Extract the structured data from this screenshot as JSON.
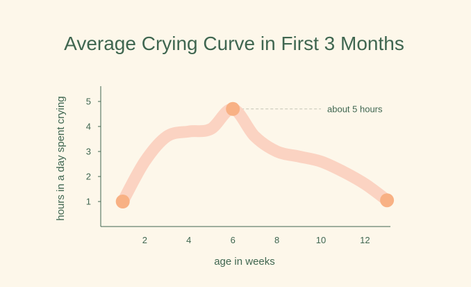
{
  "colors": {
    "background": "#fdf7ea",
    "text": "#3f6650",
    "axis": "#3f6650",
    "curve": "#fbd3c2",
    "marker": "#f8b184",
    "leader": "#c4c4b4"
  },
  "chart_data": {
    "type": "line",
    "title": "Average Crying Curve in First 3 Months",
    "xlabel": "age in weeks",
    "ylabel": "hours in a day spent crying",
    "xlim": [
      0,
      13.5
    ],
    "ylim": [
      0,
      5.5
    ],
    "xticks": [
      2,
      4,
      6,
      8,
      10,
      12
    ],
    "yticks": [
      1,
      2,
      3,
      4,
      5
    ],
    "grid": false,
    "series": [
      {
        "x": [
          1,
          2,
          3,
          4,
          5,
          6,
          7,
          8,
          9,
          10,
          11,
          12,
          13
        ],
        "values": [
          1.0,
          2.6,
          3.6,
          3.8,
          3.9,
          4.7,
          3.6,
          3.0,
          2.8,
          2.6,
          2.2,
          1.7,
          1.05
        ]
      }
    ],
    "markers": [
      {
        "x": 1,
        "y": 1.0
      },
      {
        "x": 6,
        "y": 4.7
      },
      {
        "x": 13,
        "y": 1.05
      }
    ],
    "annotations": [
      {
        "text": "about 5 hours",
        "x": 6,
        "y": 4.7
      }
    ]
  }
}
